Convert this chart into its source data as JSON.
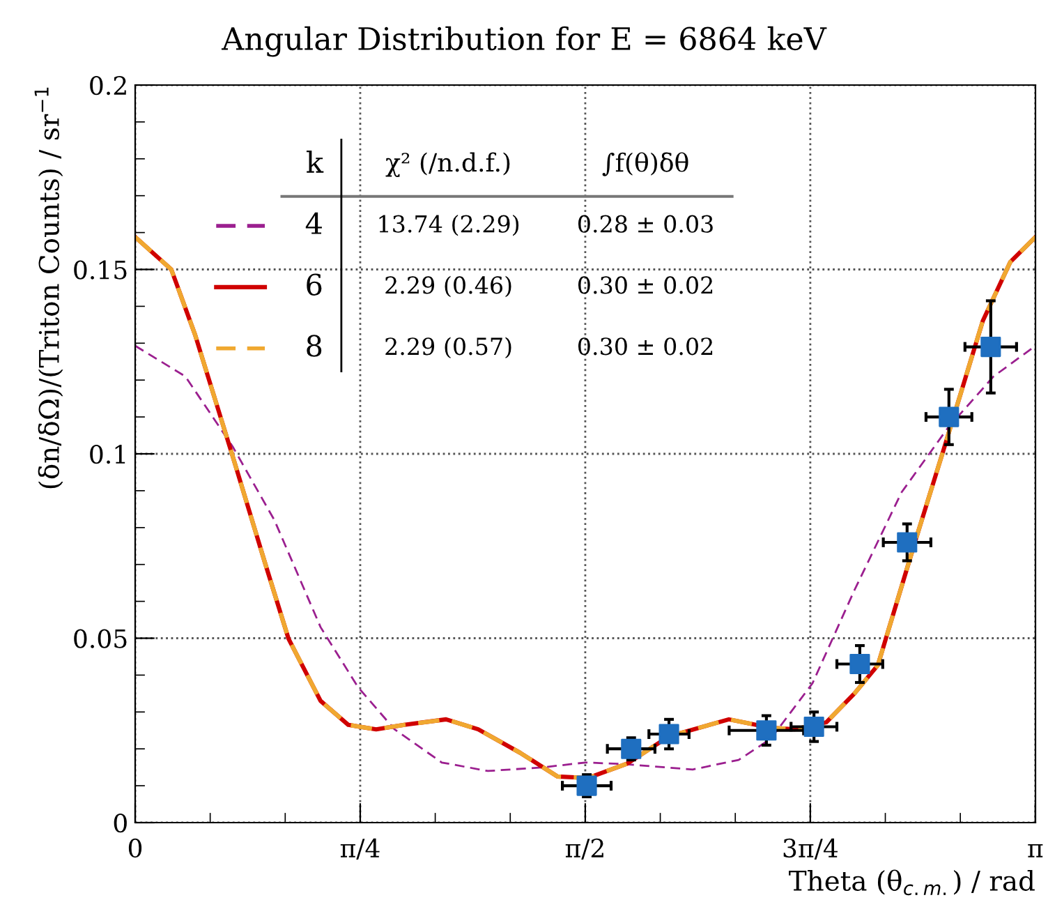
{
  "chart_data": {
    "type": "line",
    "title": "Angular Distribution for E = 6864 keV",
    "xlabel": "Theta (θ$_{c.m.}$) / rad",
    "ylabel": "(δn/δΩ)/(Triton Counts) / sr$^{−1}$",
    "xlim": [
      0,
      3.142
    ],
    "ylim": [
      0,
      0.2
    ],
    "xticks": [
      {
        "value": 0,
        "label": "0"
      },
      {
        "value": 0.7854,
        "label": "π/4"
      },
      {
        "value": 1.5708,
        "label": "π/2"
      },
      {
        "value": 2.3562,
        "label": "3π/4"
      },
      {
        "value": 3.1416,
        "label": "π"
      }
    ],
    "yticks": [
      0,
      0.05,
      0.1,
      0.15,
      0.2
    ],
    "grid": true,
    "legend": "top left",
    "series": [
      {
        "name": "4",
        "color": "#9b1f8f",
        "line_style": "dashed",
        "x": [
          0,
          0.175,
          0.34,
          0.486,
          0.647,
          0.778,
          0.905,
          1.07,
          1.231,
          1.425,
          1.571,
          1.702,
          1.946,
          2.106,
          2.218,
          2.364,
          2.51,
          2.675,
          2.836,
          2.996,
          3.142
        ],
        "values": [
          0.1293,
          0.121,
          0.102,
          0.082,
          0.053,
          0.0367,
          0.0253,
          0.0163,
          0.014,
          0.015,
          0.0163,
          0.0159,
          0.0144,
          0.017,
          0.0227,
          0.0378,
          0.063,
          0.0896,
          0.107,
          0.121,
          0.1293
        ]
      },
      {
        "name": "6",
        "color": "#d00000",
        "line_style": "solid",
        "x": [
          0,
          0.126,
          0.209,
          0.34,
          0.452,
          0.535,
          0.647,
          0.744,
          0.841,
          0.939,
          1.085,
          1.197,
          1.342,
          1.474,
          1.581,
          1.717,
          1.863,
          2.072,
          2.218,
          2.301,
          2.412,
          2.51,
          2.592,
          2.724,
          2.821,
          2.958,
          3.054,
          3.142
        ],
        "values": [
          0.1588,
          0.15,
          0.1323,
          0.0994,
          0.0707,
          0.0499,
          0.033,
          0.0265,
          0.0253,
          0.0265,
          0.028,
          0.0253,
          0.019,
          0.0125,
          0.0121,
          0.016,
          0.0234,
          0.028,
          0.0257,
          0.0253,
          0.0272,
          0.035,
          0.0427,
          0.0767,
          0.101,
          0.136,
          0.152,
          0.1588
        ]
      },
      {
        "name": "8",
        "color": "#f0a830",
        "line_style": "dashed",
        "x": [
          0,
          0.126,
          0.209,
          0.34,
          0.452,
          0.535,
          0.647,
          0.744,
          0.841,
          0.939,
          1.085,
          1.197,
          1.342,
          1.474,
          1.581,
          1.717,
          1.863,
          2.072,
          2.218,
          2.301,
          2.412,
          2.51,
          2.592,
          2.724,
          2.821,
          2.958,
          3.054,
          3.142
        ],
        "values": [
          0.1588,
          0.15,
          0.1323,
          0.0994,
          0.0707,
          0.0499,
          0.033,
          0.0265,
          0.0253,
          0.0265,
          0.028,
          0.0253,
          0.019,
          0.0125,
          0.0121,
          0.016,
          0.0234,
          0.028,
          0.0257,
          0.0253,
          0.0272,
          0.035,
          0.0427,
          0.0767,
          0.101,
          0.136,
          0.152,
          0.1588
        ]
      },
      {
        "type": "scatter",
        "color": "#1f6fc0",
        "marker": "square",
        "x": [
          1.576,
          1.731,
          1.863,
          2.203,
          2.369,
          2.529,
          2.694,
          2.84,
          2.986
        ],
        "values": [
          0.01,
          0.02,
          0.024,
          0.025,
          0.026,
          0.043,
          0.076,
          0.11,
          0.129
        ],
        "errors": [
          0.003,
          0.003,
          0.004,
          0.004,
          0.004,
          0.005,
          0.005,
          0.0075,
          0.0125
        ],
        "xerrors": [
          0.085,
          0.083,
          0.07,
          0.13,
          0.08,
          0.08,
          0.083,
          0.08,
          0.09
        ]
      }
    ],
    "annotations": [
      "k",
      "χ² (/n.d.f.)",
      "∫f(θ)δθ",
      "13.74 (2.29)",
      "0.28 ± 0.03",
      "2.29 (0.46)",
      "0.30 ± 0.02",
      "2.29 (0.57)",
      "0.30 ± 0.02"
    ]
  }
}
